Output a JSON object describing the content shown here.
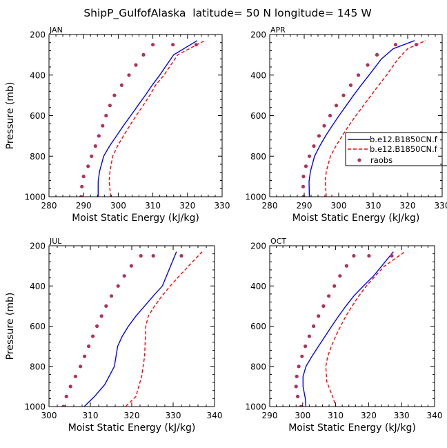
{
  "title": "ShipP_GulfofAlaska  latitude= 50 N longitude= 145 W",
  "colors": {
    "model1": "#0000ff",
    "model2": "#ff0000",
    "raobs": "#b03060",
    "axis": "#000000"
  },
  "legend": {
    "placement": "right of APR panel",
    "entries": [
      "b.e12.B1850CN.f",
      "b.e12.B1850CN.f",
      "raobs"
    ]
  },
  "chart_data": [
    {
      "type": "line",
      "title": "JAN",
      "xlabel": "Moist Static Energy (kJ/kg)",
      "ylabel": "Pressure (mb)",
      "xlim": [
        280,
        330
      ],
      "ylim": [
        1000,
        200
      ],
      "xticks": [
        280,
        290,
        300,
        310,
        320,
        330
      ],
      "yticks": [
        200,
        400,
        600,
        800,
        1000
      ],
      "series": [
        {
          "style": "solid",
          "x": [
            294.2,
            294.2,
            294.6,
            295.8,
            297.5,
            299.5,
            301.5,
            303.6,
            305.7,
            307.8,
            309.8,
            312.0,
            316.0,
            322.8
          ],
          "y": [
            1000,
            925,
            875,
            800,
            750,
            700,
            650,
            600,
            550,
            500,
            450,
            400,
            300,
            230
          ]
        },
        {
          "style": "dashed",
          "x": [
            297.8,
            297.4,
            297.6,
            298.4,
            299.8,
            301.5,
            303.3,
            305.2,
            307.2,
            309.1,
            310.8,
            313.2,
            317.2,
            325.0
          ],
          "y": [
            1000,
            925,
            875,
            800,
            750,
            700,
            650,
            600,
            550,
            500,
            450,
            400,
            300,
            230
          ]
        },
        {
          "style": "markers",
          "x": [
            289.3,
            289.5,
            290.0,
            291.3,
            292.3,
            293.4,
            294.4,
            295.5,
            296.5,
            297.6,
            298.9,
            301.0,
            303.1,
            305.1,
            307.3,
            310.0,
            315.8,
            322.5
          ],
          "y": [
            1000,
            950,
            900,
            850,
            800,
            750,
            700,
            650,
            600,
            550,
            500,
            450,
            400,
            350,
            300,
            250,
            250,
            250
          ]
        }
      ]
    },
    {
      "type": "line",
      "title": "APR",
      "xlabel": "Moist Static Energy (kJ/kg)",
      "ylabel": "",
      "xlim": [
        280,
        330
      ],
      "ylim": [
        1000,
        200
      ],
      "xticks": [
        280,
        290,
        300,
        310,
        320,
        330
      ],
      "yticks": [
        200,
        400,
        600,
        800,
        1000
      ],
      "series": [
        {
          "style": "solid",
          "x": [
            291.5,
            291.4,
            291.8,
            293.0,
            294.5,
            296.2,
            298.1,
            300.1,
            302.2,
            304.3,
            306.5,
            308.8,
            312.4,
            315.8,
            322.0
          ],
          "y": [
            1000,
            925,
            875,
            800,
            750,
            700,
            650,
            600,
            550,
            500,
            450,
            400,
            320,
            270,
            230
          ]
        },
        {
          "style": "dashed",
          "x": [
            296.4,
            296.1,
            296.4,
            297.6,
            299.2,
            301.0,
            302.9,
            305.0,
            307.2,
            309.4,
            311.6,
            313.9,
            317.2,
            320.0,
            325.2
          ],
          "y": [
            1000,
            925,
            875,
            800,
            750,
            700,
            650,
            600,
            550,
            500,
            450,
            400,
            320,
            270,
            230
          ]
        },
        {
          "style": "markers",
          "x": [
            289.8,
            289.7,
            289.8,
            290.5,
            291.5,
            292.8,
            294.3,
            295.8,
            297.5,
            299.3,
            301.4,
            303.5,
            305.7,
            308.4,
            311.1,
            316.5,
            322.5
          ],
          "y": [
            1000,
            950,
            900,
            850,
            800,
            750,
            700,
            650,
            600,
            550,
            500,
            450,
            400,
            350,
            300,
            250,
            250
          ]
        }
      ]
    },
    {
      "type": "line",
      "title": "JUL",
      "xlabel": "Moist Static Energy (kJ/kg)",
      "ylabel": "Pressure (mb)",
      "xlim": [
        300,
        340
      ],
      "ylim": [
        1000,
        200
      ],
      "xticks": [
        300,
        310,
        320,
        330,
        340
      ],
      "yticks": [
        200,
        400,
        600,
        800,
        1000
      ],
      "series": [
        {
          "style": "solid",
          "x": [
            307.0,
            308.5,
            311.0,
            313.5,
            315.8,
            316.6,
            317.7,
            319.2,
            321.0,
            323.1,
            325.2,
            327.4,
            330.8
          ],
          "y": [
            1020,
            1000,
            950,
            890,
            800,
            700,
            650,
            600,
            550,
            500,
            450,
            400,
            230
          ]
        },
        {
          "style": "dashed",
          "x": [
            317.7,
            318.5,
            321.0,
            322.4,
            323.1,
            323.3,
            323.4,
            324.0,
            325.5,
            327.3,
            329.3,
            331.5,
            337.0
          ],
          "y": [
            1020,
            1000,
            950,
            850,
            750,
            650,
            600,
            550,
            500,
            450,
            400,
            350,
            230
          ]
        },
        {
          "style": "markers",
          "x": [
            303.5,
            304.2,
            305.2,
            306.4,
            307.6,
            308.6,
            309.6,
            310.6,
            311.6,
            312.7,
            313.8,
            315.1,
            316.7,
            318.2,
            319.9,
            322.2,
            325.2,
            332.0
          ],
          "y": [
            1000,
            950,
            900,
            850,
            800,
            750,
            700,
            650,
            600,
            550,
            500,
            450,
            400,
            350,
            300,
            250,
            250,
            250
          ]
        }
      ]
    },
    {
      "type": "line",
      "title": "OCT",
      "xlabel": "Moist Static Energy (kJ/kg)",
      "ylabel": "",
      "xlim": [
        290,
        340
      ],
      "ylim": [
        1000,
        200
      ],
      "xticks": [
        290,
        300,
        310,
        320,
        330,
        340
      ],
      "yticks": [
        200,
        400,
        600,
        800,
        1000
      ],
      "series": [
        {
          "style": "solid",
          "x": [
            301.0,
            300.8,
            300.1,
            300.1,
            301.0,
            302.8,
            304.8,
            306.8,
            308.8,
            310.9,
            313.1,
            315.5,
            318.4,
            321.5,
            327.5
          ],
          "y": [
            1010,
            960,
            900,
            850,
            800,
            750,
            700,
            650,
            600,
            550,
            500,
            450,
            400,
            350,
            230
          ]
        },
        {
          "style": "dashed",
          "x": [
            310.2,
            309.3,
            307.3,
            307.0,
            307.6,
            308.7,
            310.0,
            311.5,
            313.1,
            315.0,
            317.0,
            319.3,
            322.0,
            324.9,
            331.0
          ],
          "y": [
            1010,
            960,
            875,
            800,
            750,
            700,
            650,
            600,
            550,
            500,
            450,
            400,
            350,
            300,
            230
          ]
        },
        {
          "style": "markers",
          "x": [
            299.5,
            298.5,
            298.0,
            298.2,
            298.8,
            299.8,
            300.8,
            302.0,
            303.3,
            304.8,
            306.3,
            307.9,
            309.6,
            311.3,
            313.3,
            315.5,
            320.1,
            327.0
          ],
          "y": [
            1000,
            950,
            900,
            850,
            800,
            750,
            700,
            650,
            600,
            550,
            500,
            450,
            400,
            350,
            300,
            250,
            250,
            250
          ]
        }
      ]
    }
  ]
}
